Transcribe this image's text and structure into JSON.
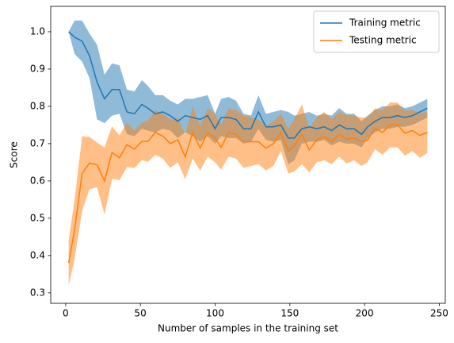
{
  "chart_data": {
    "type": "line",
    "xlabel": "Number of samples in the training set",
    "ylabel": "Score",
    "x": [
      2,
      6,
      11,
      16,
      21,
      26,
      31,
      36,
      41,
      46,
      51,
      55,
      60,
      65,
      70,
      75,
      80,
      85,
      90,
      95,
      100,
      104,
      109,
      114,
      119,
      124,
      129,
      134,
      139,
      144,
      149,
      153,
      158,
      163,
      168,
      173,
      178,
      183,
      188,
      193,
      198,
      202,
      207,
      212,
      217,
      222,
      227,
      232,
      237,
      242
    ],
    "series": [
      {
        "name": "Training metric",
        "color": "#1f77b4",
        "values": [
          1.0,
          0.985,
          0.975,
          0.935,
          0.865,
          0.82,
          0.845,
          0.845,
          0.785,
          0.78,
          0.805,
          0.795,
          0.78,
          0.785,
          0.775,
          0.76,
          0.775,
          0.77,
          0.765,
          0.775,
          0.74,
          0.77,
          0.77,
          0.765,
          0.74,
          0.74,
          0.785,
          0.745,
          0.745,
          0.75,
          0.715,
          0.715,
          0.74,
          0.745,
          0.74,
          0.745,
          0.735,
          0.75,
          0.74,
          0.74,
          0.725,
          0.745,
          0.76,
          0.77,
          0.77,
          0.775,
          0.77,
          0.775,
          0.785,
          0.795
        ],
        "std": [
          0,
          0.045,
          0.055,
          0.06,
          0.1,
          0.065,
          0.07,
          0.065,
          0.06,
          0.06,
          0.065,
          0.06,
          0.05,
          0.045,
          0.04,
          0.045,
          0.045,
          0.05,
          0.06,
          0.055,
          0.04,
          0.05,
          0.055,
          0.05,
          0.04,
          0.035,
          0.045,
          0.035,
          0.04,
          0.04,
          0.07,
          0.06,
          0.04,
          0.04,
          0.035,
          0.035,
          0.04,
          0.045,
          0.04,
          0.04,
          0.035,
          0.03,
          0.03,
          0.03,
          0.03,
          0.03,
          0.025,
          0.025,
          0.025,
          0.025
        ]
      },
      {
        "name": "Testing metric",
        "color": "#ff7f0e",
        "values": [
          0.38,
          0.47,
          0.62,
          0.648,
          0.643,
          0.6,
          0.676,
          0.662,
          0.697,
          0.685,
          0.706,
          0.706,
          0.73,
          0.72,
          0.7,
          0.71,
          0.665,
          0.73,
          0.688,
          0.73,
          0.715,
          0.69,
          0.73,
          0.725,
          0.705,
          0.705,
          0.705,
          0.688,
          0.7,
          0.73,
          0.68,
          0.695,
          0.725,
          0.683,
          0.71,
          0.72,
          0.705,
          0.725,
          0.712,
          0.715,
          0.705,
          0.71,
          0.74,
          0.73,
          0.75,
          0.75,
          0.728,
          0.735,
          0.722,
          0.73
        ],
        "std": [
          0.06,
          0.08,
          0.1,
          0.07,
          0.06,
          0.09,
          0.07,
          0.06,
          0.06,
          0.05,
          0.05,
          0.055,
          0.06,
          0.06,
          0.065,
          0.06,
          0.06,
          0.07,
          0.06,
          0.065,
          0.065,
          0.06,
          0.065,
          0.065,
          0.07,
          0.065,
          0.06,
          0.06,
          0.06,
          0.05,
          0.06,
          0.07,
          0.08,
          0.06,
          0.06,
          0.065,
          0.06,
          0.06,
          0.065,
          0.06,
          0.065,
          0.06,
          0.055,
          0.06,
          0.06,
          0.06,
          0.06,
          0.055,
          0.06,
          0.055
        ]
      }
    ],
    "xlim": [
      -10,
      254
    ],
    "ylim": [
      0.272,
      1.068
    ],
    "xticks": [
      0,
      50,
      100,
      150,
      200,
      250
    ],
    "yticks": [
      0.3,
      0.4,
      0.5,
      0.6,
      0.7,
      0.8,
      0.9,
      {
        "value": 1,
        "label": "1.0"
      }
    ],
    "legend": "upper right",
    "band_opacity": 0.5
  }
}
